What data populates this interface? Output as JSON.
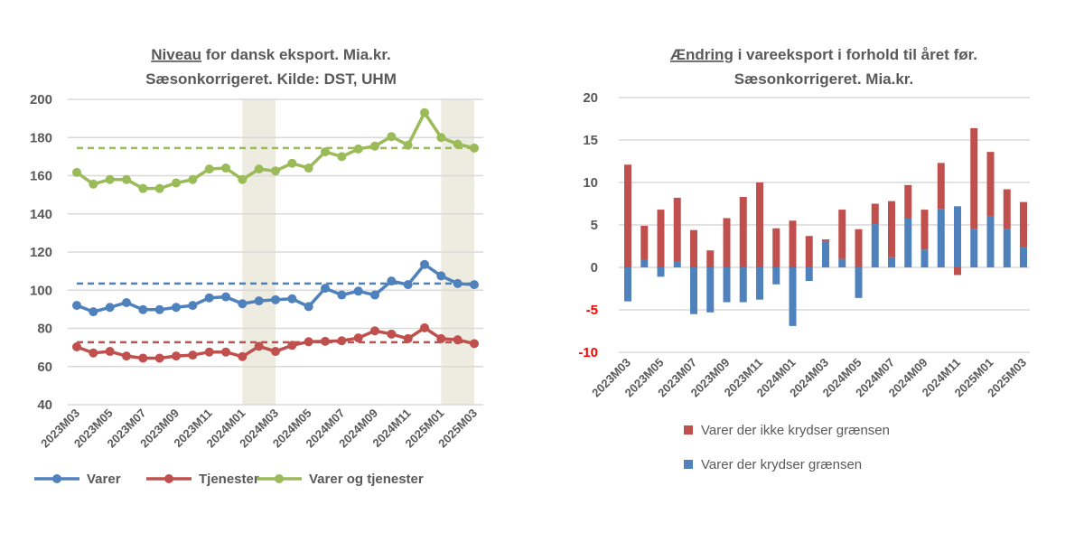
{
  "chart_data": [
    {
      "type": "line",
      "title_underlined": "Niveau",
      "title_rest": " for dansk eksport. Mia.kr.",
      "title_line2": "Sæsonkorrigeret. Kilde: DST, UHM",
      "x": [
        "2023M03",
        "2023M04",
        "2023M05",
        "2023M06",
        "2023M07",
        "2023M08",
        "2023M09",
        "2023M10",
        "2023M11",
        "2023M12",
        "2024M01",
        "2024M02",
        "2024M03",
        "2024M04",
        "2024M05",
        "2024M06",
        "2024M07",
        "2024M08",
        "2024M09",
        "2024M10",
        "2024M11",
        "2024M12",
        "2025M01",
        "2025M02",
        "2025M03"
      ],
      "xtick_labels": [
        "2023M03",
        "2023M05",
        "2023M07",
        "2023M09",
        "2023M11",
        "2024M01",
        "2024M03",
        "2024M05",
        "2024M07",
        "2024M09",
        "2024M11",
        "2025M01",
        "2025M03"
      ],
      "ylim": [
        40,
        200
      ],
      "yticks": [
        40,
        60,
        80,
        100,
        120,
        140,
        160,
        180,
        200
      ],
      "grid": true,
      "legend_position": "bottom",
      "shaded_periods": [
        [
          "2024M01",
          "2024M03"
        ],
        [
          "2025M01",
          "2025M03"
        ]
      ],
      "shade_color": "#EEEBE1",
      "series": [
        {
          "name": "Varer",
          "color": "#4F81BD",
          "average": 103.5,
          "values": [
            92,
            88.7,
            91,
            93.5,
            89.8,
            89.8,
            91,
            92,
            96,
            96.5,
            92.9,
            94.4,
            95,
            95.5,
            91.4,
            101,
            97.5,
            99.5,
            97.5,
            104.8,
            102.9,
            113.5,
            107.5,
            103.5,
            102.9
          ]
        },
        {
          "name": "Tjenester",
          "color": "#C0504D",
          "average": 72.7,
          "values": [
            70.3,
            67.1,
            67.9,
            65.5,
            64.4,
            64.4,
            65.5,
            66,
            67.6,
            67.6,
            65.2,
            70.6,
            67.9,
            71.1,
            73,
            73.2,
            73.5,
            75,
            78.7,
            77,
            74.6,
            80.3,
            74.6,
            74,
            72
          ]
        },
        {
          "name": "Varer og tjenester",
          "color": "#9BBB59",
          "average": 174.5,
          "values": [
            161.7,
            155.6,
            158,
            158,
            153.3,
            153.3,
            156.2,
            158,
            163.5,
            164,
            158,
            163.5,
            162.5,
            166.5,
            164,
            172.5,
            170,
            174,
            175.5,
            180.5,
            176,
            193,
            180,
            176.5,
            174.5
          ]
        }
      ]
    },
    {
      "type": "bar",
      "stacked": true,
      "title_underlined": "Ændring",
      "title_rest": " i vareeksport i forhold til året før.",
      "title_line2": "Sæsonkorrigeret. Mia.kr.",
      "categories": [
        "2023M03",
        "2023M04",
        "2023M05",
        "2023M06",
        "2023M07",
        "2023M08",
        "2023M09",
        "2023M10",
        "2023M11",
        "2023M12",
        "2024M01",
        "2024M02",
        "2024M03",
        "2024M04",
        "2024M05",
        "2024M06",
        "2024M07",
        "2024M08",
        "2024M09",
        "2024M10",
        "2024M11",
        "2024M12",
        "2025M01",
        "2025M02",
        "2025M03"
      ],
      "xtick_labels": [
        "2023M03",
        "2023M05",
        "2023M07",
        "2023M09",
        "2023M11",
        "2024M01",
        "2024M03",
        "2024M05",
        "2024M07",
        "2024M09",
        "2024M11",
        "2025M01",
        "2025M03"
      ],
      "ylim": [
        -10,
        20
      ],
      "yticks": [
        -10,
        -5,
        0,
        5,
        10,
        15,
        20
      ],
      "negative_tick_color": "#FF0000",
      "grid": true,
      "legend_position": "bottom",
      "series": [
        {
          "name": "Varer der ikke krydser grænsen",
          "color": "#C0504D",
          "values": [
            12.1,
            4.0,
            6.8,
            7.5,
            4.4,
            2.0,
            5.8,
            8.3,
            10.0,
            4.6,
            5.5,
            3.7,
            0.2,
            5.8,
            4.5,
            2.4,
            6.6,
            3.9,
            4.7,
            5.4,
            -0.9,
            11.9,
            7.6,
            4.7,
            5.3
          ]
        },
        {
          "name": "Varer der krydser grænsen",
          "color": "#4F81BD",
          "values": [
            -4.0,
            0.9,
            -1.1,
            0.7,
            -5.5,
            -5.3,
            -4.1,
            -4.1,
            -3.8,
            -2.0,
            -6.9,
            -1.6,
            3.1,
            1.0,
            -3.6,
            5.1,
            1.2,
            5.8,
            2.1,
            6.9,
            7.2,
            4.5,
            6.0,
            4.5,
            2.4
          ]
        }
      ]
    }
  ]
}
